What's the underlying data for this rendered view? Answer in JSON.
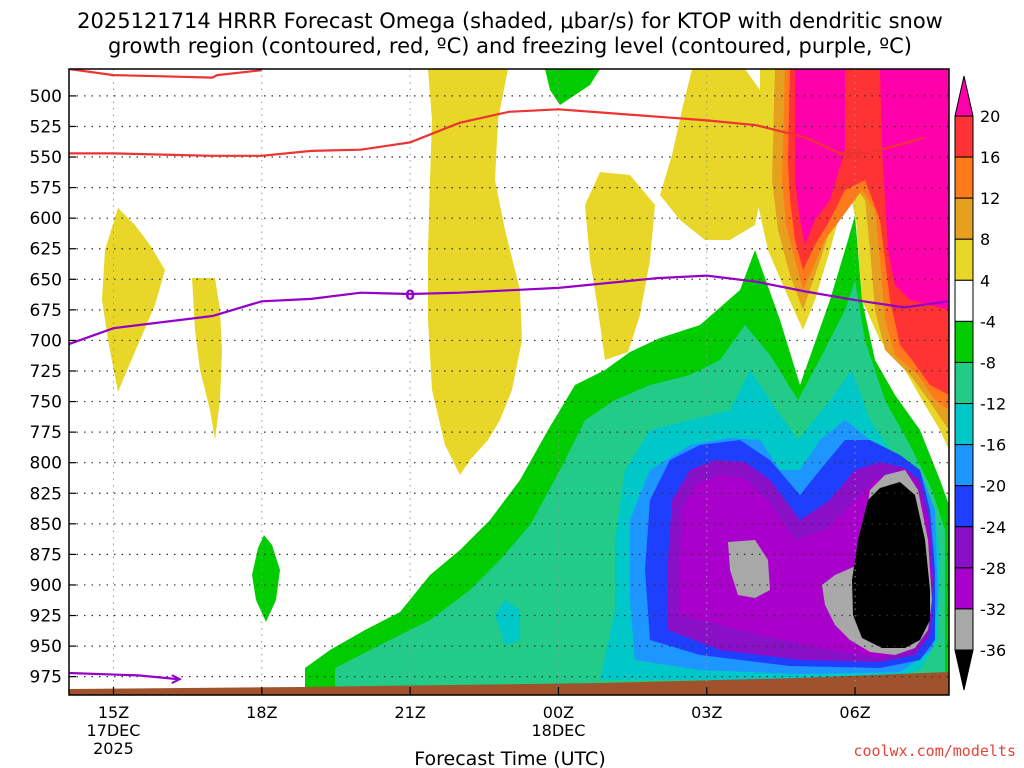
{
  "chart_data": {
    "type": "time-height contour",
    "title_line1": "2025121714 HRRR Forecast Omega (shaded, μbar/s) for KTOP with dendritic snow",
    "title_line2": "growth region (contoured, red, ºC) and freezing level (contoured, purple, ºC)",
    "xlabel": "Forecast Time (UTC)",
    "ylabel": "Pressure (mb)",
    "credit": "coolwx.com/modelts",
    "x_ticks": [
      {
        "label": "15Z",
        "sublabel1": "17DEC",
        "sublabel2": "2025",
        "hour": 15
      },
      {
        "label": "18Z",
        "sublabel1": "",
        "sublabel2": "",
        "hour": 18
      },
      {
        "label": "21Z",
        "sublabel1": "",
        "sublabel2": "",
        "hour": 21
      },
      {
        "label": "00Z",
        "sublabel1": "18DEC",
        "sublabel2": "",
        "hour": 24
      },
      {
        "label": "03Z",
        "sublabel1": "",
        "sublabel2": "",
        "hour": 27
      },
      {
        "label": "06Z",
        "sublabel1": "",
        "sublabel2": "",
        "hour": 30
      }
    ],
    "x_range_hours": [
      14.1,
      31.9
    ],
    "y_ticks": [
      500,
      525,
      550,
      575,
      600,
      625,
      650,
      675,
      700,
      725,
      750,
      775,
      800,
      825,
      850,
      875,
      900,
      925,
      950,
      975
    ],
    "y_range_mb": [
      478,
      990
    ],
    "colorbar": {
      "labels": [
        "20",
        "16",
        "12",
        "8",
        "4",
        "-4",
        "-8",
        "-12",
        "-16",
        "-20",
        "-24",
        "-28",
        "-32",
        "-36"
      ],
      "bins": [
        {
          "color": "#ff00aa"
        },
        {
          "color": "#ff3333"
        },
        {
          "color": "#ff7a1a"
        },
        {
          "color": "#e6a020"
        },
        {
          "color": "#e8d628"
        },
        {
          "color": "#ffffff"
        },
        {
          "color": "#00cc00"
        },
        {
          "color": "#22cc88"
        },
        {
          "color": "#00c8c8"
        },
        {
          "color": "#1e96ff"
        },
        {
          "color": "#1f3fff"
        },
        {
          "color": "#8a10c8"
        },
        {
          "color": "#aa00cc"
        },
        {
          "color": "#a8a8a8"
        },
        {
          "color": "#000000"
        }
      ]
    },
    "contours": {
      "freezing_level": {
        "label": "0",
        "color": "#9400c8",
        "points": [
          [
            14.1,
            703
          ],
          [
            15,
            690
          ],
          [
            17,
            680
          ],
          [
            18,
            668
          ],
          [
            19,
            666
          ],
          [
            20,
            661
          ],
          [
            21,
            662
          ],
          [
            22,
            661
          ],
          [
            23,
            659
          ],
          [
            24,
            657
          ],
          [
            25,
            653
          ],
          [
            26,
            649
          ],
          [
            27,
            647
          ],
          [
            28,
            652
          ],
          [
            29,
            660
          ],
          [
            30,
            667
          ],
          [
            31,
            673
          ],
          [
            31.9,
            668
          ]
        ]
      },
      "freezing_level_low": {
        "color": "#9400c8",
        "points": [
          [
            14.1,
            972
          ],
          [
            15.5,
            974
          ],
          [
            16.3,
            977
          ]
        ]
      },
      "dgz_minus12_upper": {
        "label": "-12",
        "color": "#ee3333",
        "points": [
          [
            14.1,
            547
          ],
          [
            15,
            547
          ],
          [
            16,
            548
          ],
          [
            17,
            549
          ],
          [
            18,
            549
          ],
          [
            19,
            545
          ],
          [
            20,
            544
          ],
          [
            21,
            538
          ],
          [
            22,
            522
          ],
          [
            23,
            513
          ],
          [
            24,
            511
          ],
          [
            25,
            514
          ],
          [
            26,
            517
          ],
          [
            27,
            520
          ],
          [
            28,
            524
          ],
          [
            29,
            534
          ],
          [
            29.7,
            547
          ],
          [
            30.2,
            547
          ],
          [
            31,
            539
          ],
          [
            31.4,
            534
          ]
        ]
      },
      "dgz_minus12_top": {
        "color": "#ee3333",
        "points": [
          [
            14.1,
            478
          ],
          [
            15,
            483
          ],
          [
            16,
            484
          ],
          [
            17,
            485
          ],
          [
            17.1,
            483
          ],
          [
            18,
            479
          ]
        ]
      }
    },
    "ground_color": "#a0522d"
  }
}
